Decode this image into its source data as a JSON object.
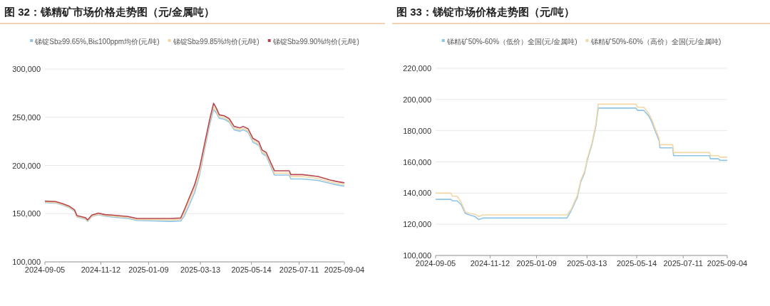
{
  "chart_data": [
    {
      "type": "line",
      "title": "图 32：锑精矿市场价格走势图（元/金属吨）",
      "x": [
        "2024-09-05",
        "2024-09-18",
        "2024-09-26",
        "2024-10-04",
        "2024-10-11",
        "2024-10-14",
        "2024-10-24",
        "2024-10-27",
        "2024-11-01",
        "2024-11-09",
        "2024-11-17",
        "2024-11-26",
        "2024-12-15",
        "2024-12-26",
        "2025-02-05",
        "2025-02-17",
        "2025-02-21",
        "2025-02-27",
        "2025-03-06",
        "2025-03-12",
        "2025-03-18",
        "2025-03-24",
        "2025-03-29",
        "2025-04-01",
        "2025-04-05",
        "2025-04-11",
        "2025-04-17",
        "2025-04-23",
        "2025-04-30",
        "2025-05-04",
        "2025-05-10",
        "2025-05-16",
        "2025-05-23",
        "2025-05-27",
        "2025-06-01",
        "2025-06-07",
        "2025-06-11",
        "2025-06-29",
        "2025-07-01",
        "2025-07-15",
        "2025-08-03",
        "2025-08-17",
        "2025-08-25",
        "2025-09-04"
      ],
      "series": [
        {
          "name": "锑锭Sb≥99.65%,Bi≤100ppm均价(元/吨)",
          "color": "#8ec5e6",
          "values": [
            161500,
            161000,
            159000,
            156500,
            152500,
            146500,
            144500,
            142000,
            147000,
            149000,
            147500,
            146500,
            145000,
            143000,
            142000,
            142500,
            147000,
            158000,
            172000,
            190000,
            216000,
            241000,
            258000,
            255000,
            249000,
            248000,
            245000,
            237000,
            235500,
            237000,
            234500,
            224000,
            221000,
            212500,
            210000,
            198000,
            190000,
            190000,
            186000,
            186000,
            184500,
            181500,
            180000,
            178500
          ]
        },
        {
          "name": "锑锭Sb≥99.85%均价(元/吨)",
          "color": "#f2d7a6",
          "values": [
            162000,
            161500,
            159500,
            157000,
            153000,
            147000,
            145000,
            142500,
            147500,
            149500,
            148000,
            147500,
            146000,
            144000,
            143500,
            144000,
            150000,
            162000,
            176000,
            193000,
            219000,
            244000,
            261000,
            257000,
            250500,
            249500,
            246500,
            238500,
            237000,
            238500,
            236000,
            226000,
            222500,
            214000,
            211500,
            200000,
            192000,
            192000,
            188500,
            188500,
            186500,
            183000,
            181500,
            180500
          ]
        },
        {
          "name": "锑锭Sb≥99.90%均价(元/吨)",
          "color": "#b8464f",
          "values": [
            163000,
            162500,
            160500,
            158000,
            154000,
            148000,
            146000,
            143500,
            148500,
            150500,
            149000,
            148500,
            147000,
            145000,
            145000,
            145500,
            153000,
            165500,
            180000,
            197500,
            222000,
            246500,
            264500,
            260000,
            252500,
            251500,
            248500,
            240500,
            239000,
            240500,
            238000,
            228000,
            224500,
            216000,
            213500,
            202000,
            194500,
            194500,
            190500,
            190500,
            188500,
            185000,
            183500,
            182000
          ]
        }
      ],
      "xlim": [
        "2024-09-05",
        "2025-09-04"
      ],
      "xticks": [
        "2024-09-05",
        "2024-11-12",
        "2025-01-09",
        "2025-03-13",
        "2025-05-14",
        "2025-07-11",
        "2025-09-04"
      ],
      "ylim": [
        100000,
        300000
      ],
      "yticks": [
        {
          "value": 100000,
          "label": "100,000"
        },
        {
          "value": 150000,
          "label": "150,000"
        },
        {
          "value": 200000,
          "label": "200,000"
        },
        {
          "value": 250000,
          "label": "250,000"
        },
        {
          "value": 300000,
          "label": "300,000"
        }
      ],
      "grid": "y",
      "legend": "top"
    },
    {
      "type": "line",
      "title": "图 33：锑锭市场价格走势图（元/吨）",
      "x": [
        "2024-09-05",
        "2024-09-24",
        "2024-09-26",
        "2024-10-02",
        "2024-10-07",
        "2024-10-12",
        "2024-10-17",
        "2024-10-24",
        "2024-10-29",
        "2024-11-03",
        "2025-02-16",
        "2025-02-21",
        "2025-03-01",
        "2025-03-05",
        "2025-03-10",
        "2025-03-13",
        "2025-03-19",
        "2025-03-24",
        "2025-03-27",
        "2025-05-13",
        "2025-05-15",
        "2025-05-23",
        "2025-05-29",
        "2025-06-02",
        "2025-06-06",
        "2025-06-11",
        "2025-06-12",
        "2025-06-28",
        "2025-06-29",
        "2025-08-13",
        "2025-08-14",
        "2025-08-24",
        "2025-08-26",
        "2025-09-04"
      ],
      "series": [
        {
          "name": "锑精矿50%-60%（低价）全国(元/金属吨)",
          "color": "#8ec5e6",
          "values": [
            136000,
            136000,
            135000,
            135000,
            132500,
            127000,
            126000,
            125000,
            123000,
            124000,
            124000,
            128500,
            137500,
            147000,
            153000,
            160500,
            171000,
            183000,
            194500,
            194500,
            193000,
            193000,
            189500,
            185500,
            180000,
            173500,
            169000,
            169000,
            164000,
            164000,
            162000,
            162000,
            161000,
            161000
          ]
        },
        {
          "name": "锑精矿50%-60%（高价）全国(元/金属吨)",
          "color": "#f2d7a6",
          "values": [
            140000,
            140000,
            138000,
            138000,
            134000,
            128000,
            127000,
            126500,
            125000,
            126000,
            126000,
            129500,
            138500,
            148000,
            154000,
            161500,
            172000,
            184000,
            197000,
            197000,
            195000,
            195000,
            191000,
            187000,
            181500,
            175000,
            171000,
            171000,
            166000,
            166000,
            164000,
            164000,
            163000,
            163000
          ]
        }
      ],
      "xlim": [
        "2024-09-05",
        "2025-09-04"
      ],
      "xticks": [
        "2024-09-05",
        "2024-11-12",
        "2025-01-09",
        "2025-03-13",
        "2025-05-14",
        "2025-07-11",
        "2025-09-04"
      ],
      "ylim": [
        100000,
        220000
      ],
      "yticks": [
        {
          "value": 100000,
          "label": "100,000"
        },
        {
          "value": 120000,
          "label": "120,000"
        },
        {
          "value": 140000,
          "label": "140,000"
        },
        {
          "value": 160000,
          "label": "160,000"
        },
        {
          "value": 180000,
          "label": "180,000"
        },
        {
          "value": 200000,
          "label": "200,000"
        },
        {
          "value": 220000,
          "label": "220,000"
        }
      ],
      "grid": "y",
      "legend": "top"
    }
  ]
}
